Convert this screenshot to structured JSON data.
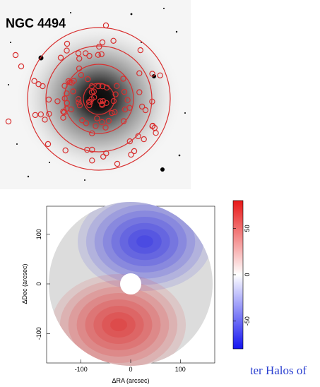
{
  "image_label": "NGC 4494",
  "caption_link_text": "Outer Halos of",
  "colors": {
    "aperture_red": "#d83030",
    "positive": "#d8202a",
    "negative": "#1f28e0",
    "link": "#2a3fd0"
  },
  "chart_data": {
    "type": "heatmap",
    "xlabel": "ΔRA (arcsec)",
    "ylabel": "ΔDec (arcsec)",
    "x_ticks": [
      -100,
      0,
      100
    ],
    "y_ticks": [
      -100,
      0,
      100
    ],
    "xlim": [
      -165,
      165
    ],
    "ylim": [
      -165,
      165
    ],
    "colorbar_ticks": [
      50,
      0,
      -50
    ],
    "colorbar_range": [
      -80,
      80
    ]
  }
}
